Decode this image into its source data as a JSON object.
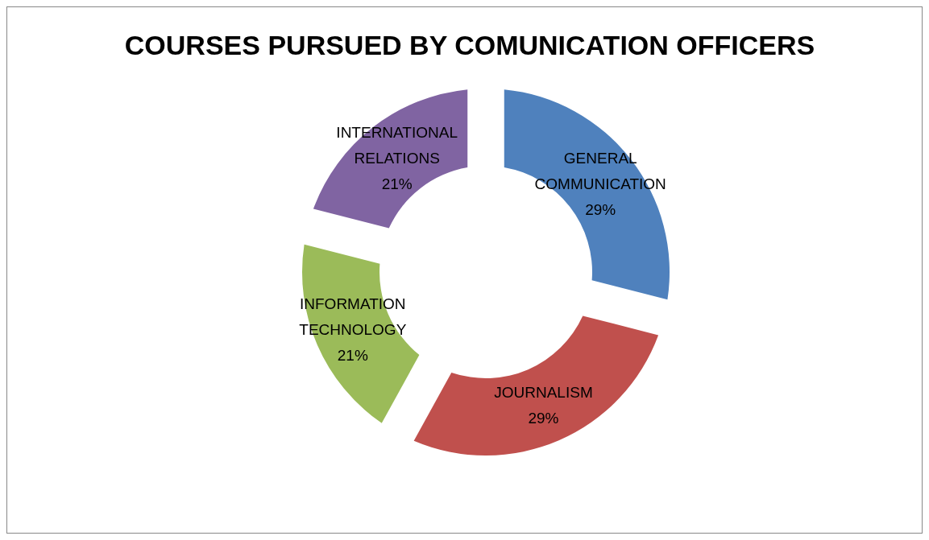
{
  "chart_data": {
    "type": "donut",
    "title": "COURSES PURSUED BY COMUNICATION OFFICERS",
    "categories": [
      "GENERAL COMMUNICATION",
      "JOURNALISM",
      "INFORMATION TECHNOLOGY",
      "INTERNATIONAL RELATIONS"
    ],
    "values": [
      29,
      29,
      21,
      21
    ],
    "value_labels": [
      "29%",
      "29%",
      "21%",
      "21%"
    ],
    "colors": [
      "#4f81bd",
      "#c0504d",
      "#9bbb59",
      "#8064a2"
    ],
    "legend": false
  }
}
